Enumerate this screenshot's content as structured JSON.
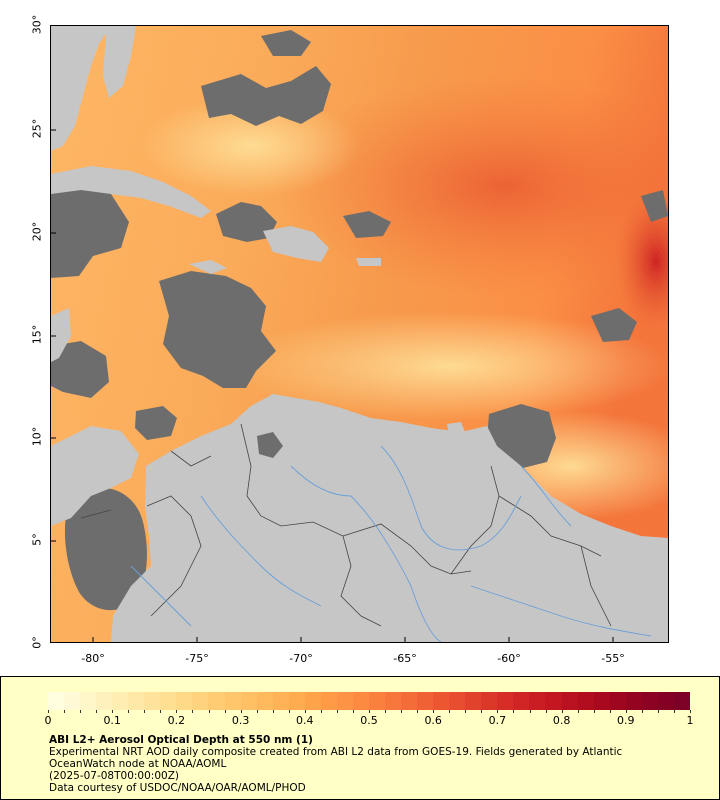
{
  "map": {
    "y_axis_labels": [
      "30°",
      "25°",
      "20°",
      "15°",
      "10°",
      "5°",
      "0°"
    ],
    "x_axis_labels": [
      "-80°",
      "-75°",
      "-70°",
      "-65°",
      "-60°",
      "-55°"
    ],
    "colors": {
      "land": "#c6c6c6",
      "no_data": "#6d6d6d",
      "rivers": "#6a9fd8",
      "borders": "#444444"
    }
  },
  "colorbar": {
    "tick_labels": [
      "0",
      "0.1",
      "0.2",
      "0.3",
      "0.4",
      "0.5",
      "0.6",
      "0.7",
      "0.8",
      "0.9",
      "1"
    ],
    "colors": [
      "#ffffe0",
      "#fff4c4",
      "#ffe9a8",
      "#ffdd8e",
      "#ffce75",
      "#ffbf62",
      "#ffae52",
      "#ff9b46",
      "#fb8540",
      "#f46d38",
      "#ea5330",
      "#dd3a29",
      "#cf2124",
      "#bd1220",
      "#a7081f",
      "#8e0322",
      "#7d0026"
    ]
  },
  "legend": {
    "title": "ABI L2+ Aerosol Optical Depth at 550 nm (1)",
    "line1": "Experimental NRT AOD daily composite created from ABI L2 data from GOES-19. Fields generated by Atlantic",
    "line2": "OceanWatch node at NOAA/AOML",
    "line3": "(2025-07-08T00:00:00Z)",
    "line4": "Data courtesy of USDOC/NOAA/OAR/AOML/PHOD"
  }
}
